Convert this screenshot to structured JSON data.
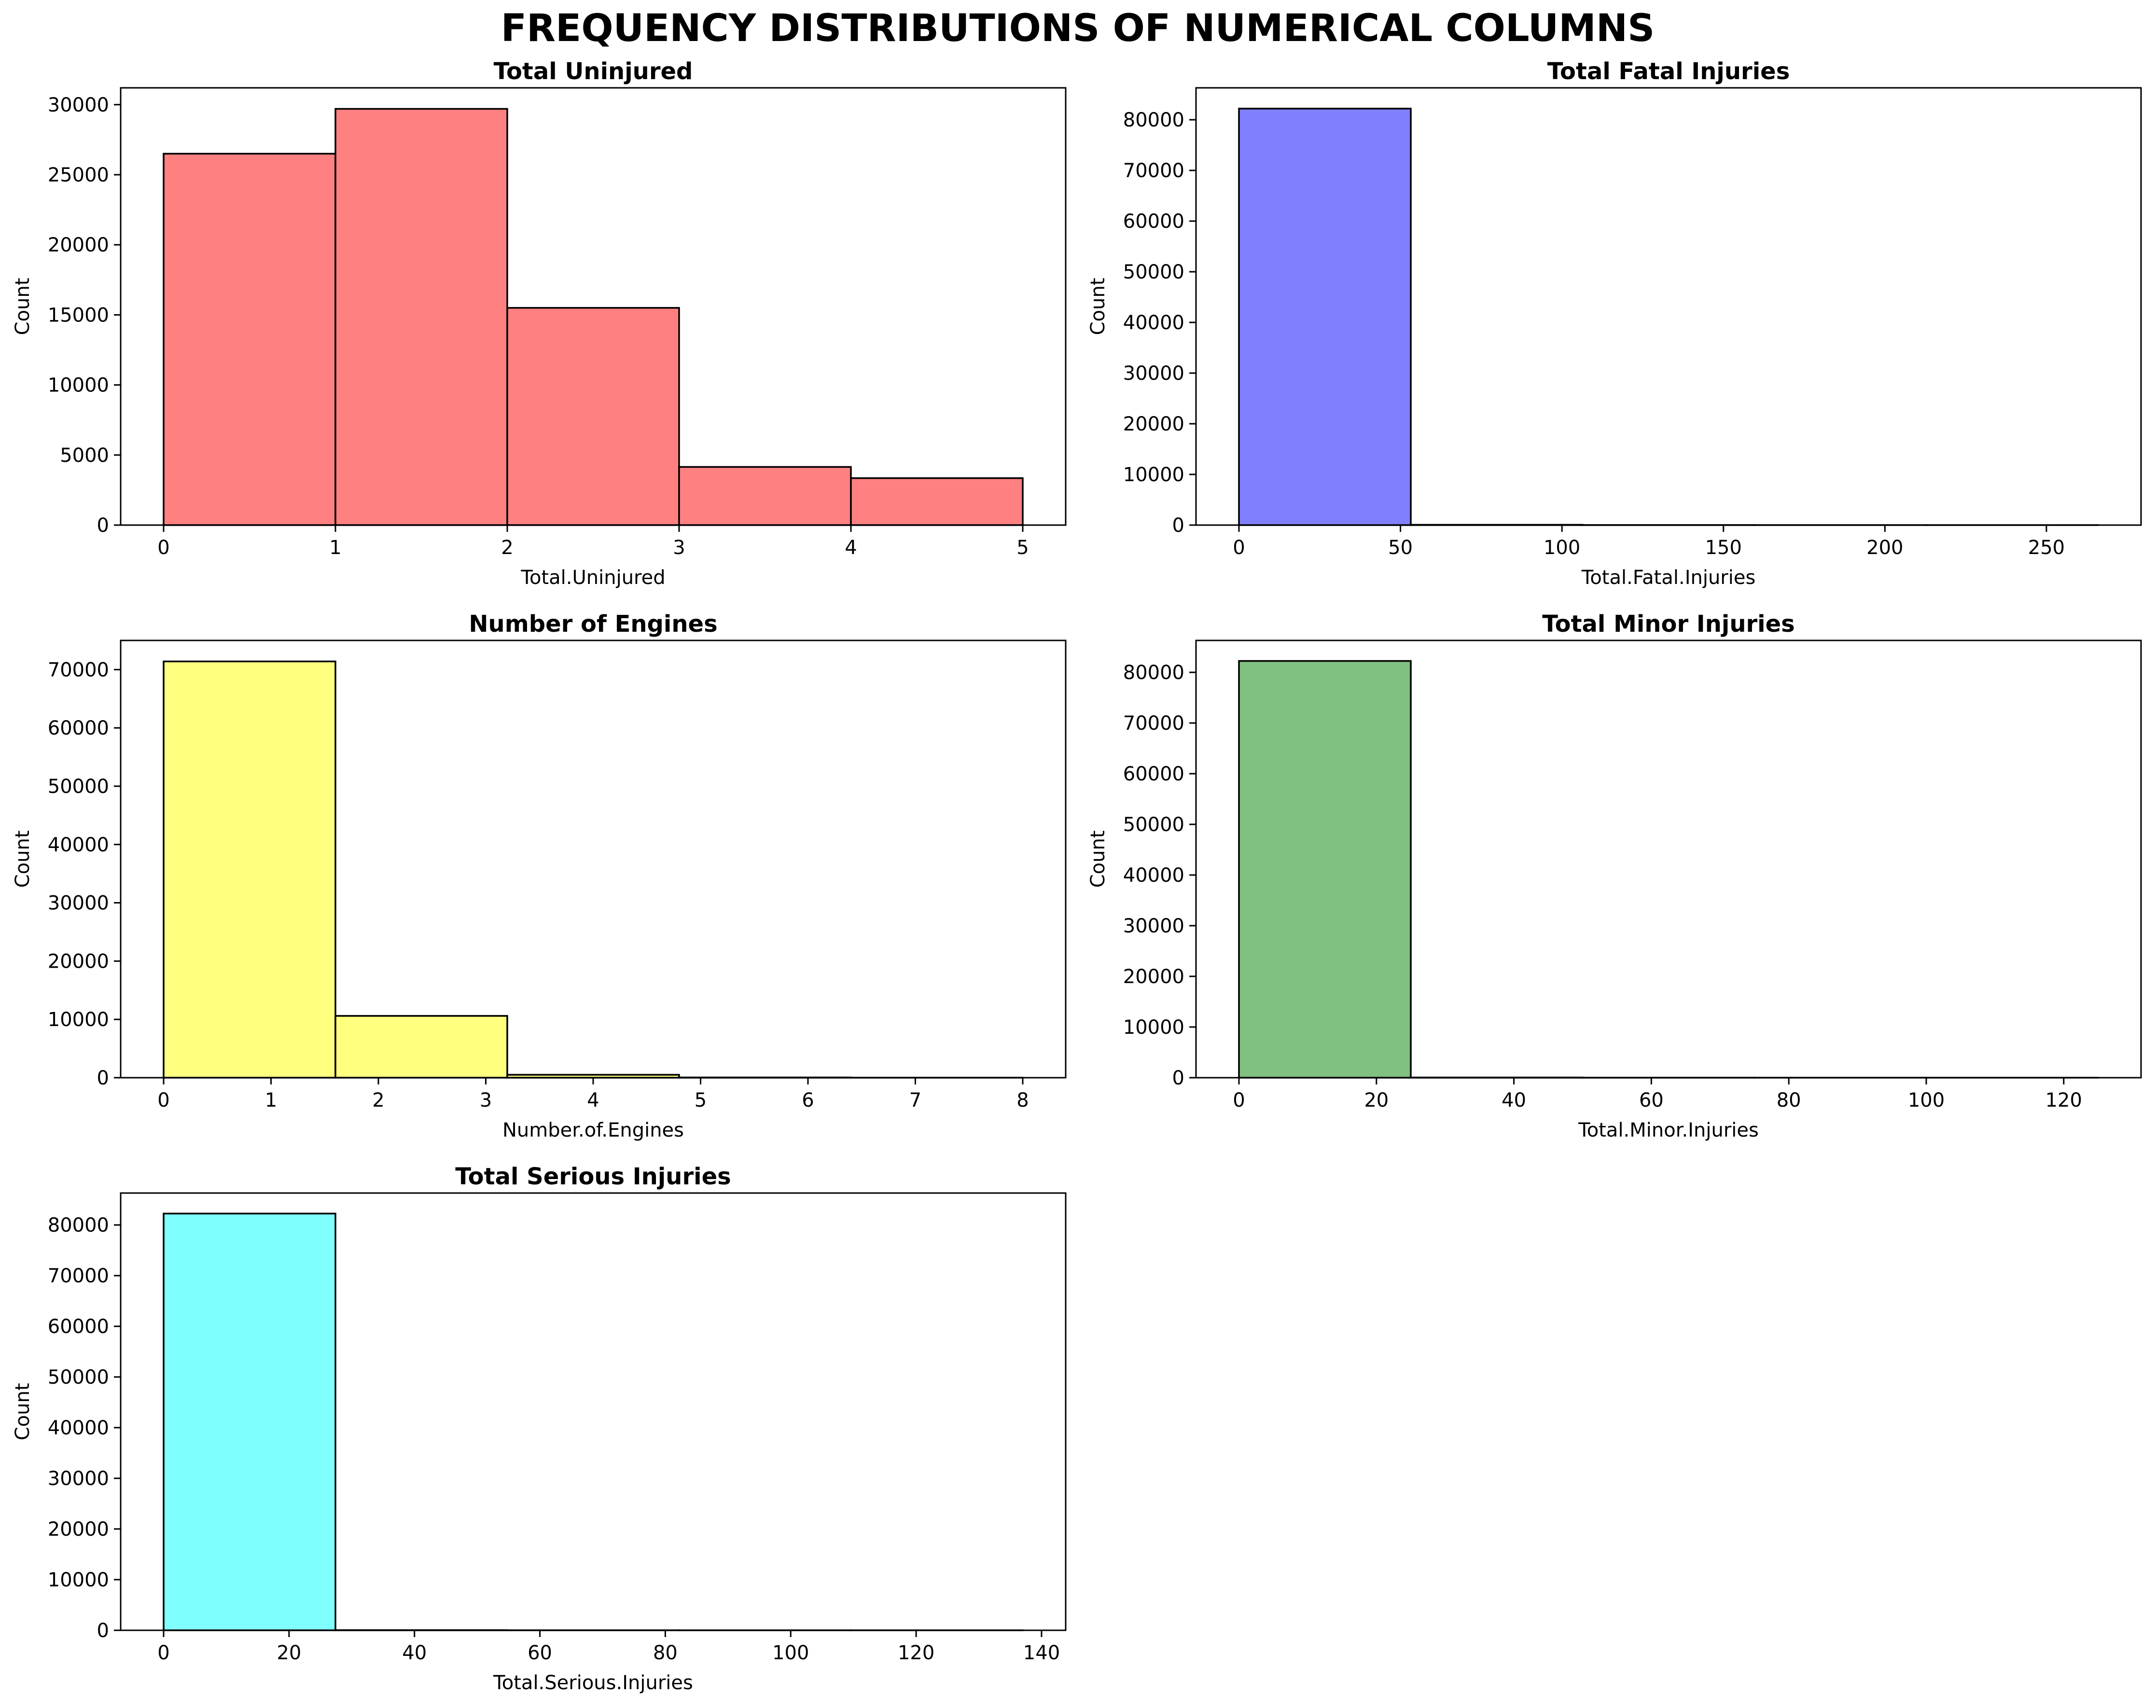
{
  "figure": {
    "title": "FREQUENCY DISTRIBUTIONS OF NUMERICAL COLUMNS"
  },
  "chart_data": [
    {
      "type": "bar",
      "title": "Total Uninjured",
      "xlabel": "Total.Uninjured",
      "ylabel": "Count",
      "bin_edges": [
        0,
        1,
        2,
        3,
        4,
        5
      ],
      "values": [
        26500,
        29700,
        15500,
        4150,
        3350
      ],
      "xlim": [
        -0.25,
        5.25
      ],
      "ylim": [
        0,
        31200
      ],
      "xticks": [
        0,
        1,
        2,
        3,
        4,
        5
      ],
      "yticks": [
        0,
        5000,
        10000,
        15000,
        20000,
        25000,
        30000
      ],
      "color": "#ff8080"
    },
    {
      "type": "bar",
      "title": "Total Fatal Injuries",
      "xlabel": "Total.Fatal.Injuries",
      "ylabel": "Count",
      "bin_edges": [
        0,
        53.2,
        106.4,
        159.6,
        212.8,
        266
      ],
      "values": [
        82200,
        60,
        15,
        8,
        5
      ],
      "xlim": [
        -13.3,
        279.3
      ],
      "ylim": [
        0,
        86300
      ],
      "xticks": [
        0,
        50,
        100,
        150,
        200,
        250
      ],
      "yticks": [
        0,
        10000,
        20000,
        30000,
        40000,
        50000,
        60000,
        70000,
        80000
      ],
      "color": "#8080ff"
    },
    {
      "type": "bar",
      "title": "Number of Engines",
      "xlabel": "Number.of.Engines",
      "ylabel": "Count",
      "bin_edges": [
        0,
        1.6,
        3.2,
        4.8,
        6.4,
        8
      ],
      "values": [
        71400,
        10600,
        500,
        40,
        10
      ],
      "xlim": [
        -0.4,
        8.4
      ],
      "ylim": [
        0,
        75000
      ],
      "xticks": [
        0,
        1,
        2,
        3,
        4,
        5,
        6,
        7,
        8
      ],
      "yticks": [
        0,
        10000,
        20000,
        30000,
        40000,
        50000,
        60000,
        70000
      ],
      "color": "#ffff80"
    },
    {
      "type": "bar",
      "title": "Total Minor Injuries",
      "xlabel": "Total.Minor.Injuries",
      "ylabel": "Count",
      "bin_edges": [
        0,
        25,
        50,
        75,
        100,
        125
      ],
      "values": [
        82250,
        40,
        10,
        5,
        3
      ],
      "xlim": [
        -6.25,
        131.25
      ],
      "ylim": [
        0,
        86300
      ],
      "xticks": [
        0,
        20,
        40,
        60,
        80,
        100,
        120
      ],
      "yticks": [
        0,
        10000,
        20000,
        30000,
        40000,
        50000,
        60000,
        70000,
        80000
      ],
      "color": "#80c080"
    },
    {
      "type": "bar",
      "title": "Total Serious Injuries",
      "xlabel": "Total.Serious.Injuries",
      "ylabel": "Count",
      "bin_edges": [
        0,
        27.4,
        54.8,
        82.2,
        109.6,
        137
      ],
      "values": [
        82250,
        30,
        8,
        4,
        2
      ],
      "xlim": [
        -6.85,
        143.85
      ],
      "ylim": [
        0,
        86300
      ],
      "xticks": [
        0,
        20,
        40,
        60,
        80,
        100,
        120,
        140
      ],
      "yticks": [
        0,
        10000,
        20000,
        30000,
        40000,
        50000,
        60000,
        70000,
        80000
      ],
      "color": "#80ffff"
    }
  ]
}
